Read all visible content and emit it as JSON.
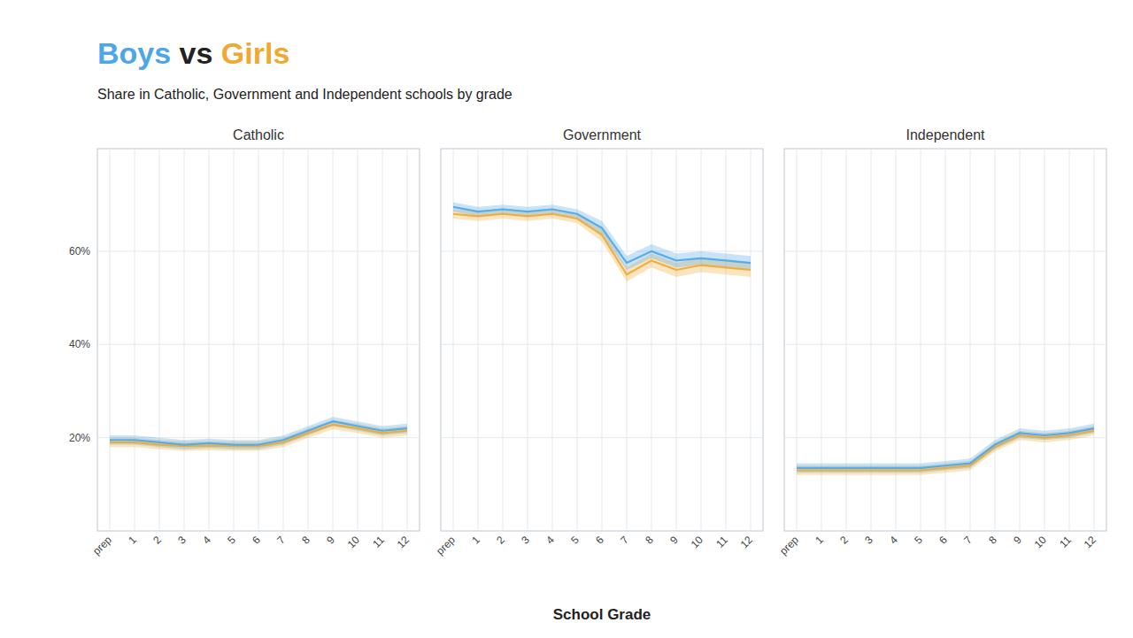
{
  "chart_data": [
    {
      "type": "line",
      "title": "Catholic",
      "subtitle": "Share in Catholic, Government and Independent schools by grade",
      "annotations": [
        {
          "text": "Boys",
          "color": "#4da6e8"
        },
        {
          "text": " vs ",
          "color": "#222222"
        },
        {
          "text": "Girls",
          "color": "#f0a830"
        }
      ],
      "categories": [
        "prep",
        "1",
        "2",
        "3",
        "4",
        "5",
        "6",
        "7",
        "8",
        "9",
        "10",
        "11",
        "12"
      ],
      "series": [
        {
          "color": "#f0a830",
          "values": [
            19.0,
            19.0,
            18.5,
            18.2,
            18.3,
            18.2,
            18.2,
            19.0,
            21.0,
            22.8,
            22.0,
            21.0,
            21.5
          ],
          "lower": [
            18.0,
            18.0,
            17.5,
            17.2,
            17.3,
            17.2,
            17.2,
            18.0,
            20.0,
            21.8,
            21.0,
            20.0,
            20.5
          ],
          "upper": [
            20.0,
            20.0,
            19.5,
            19.2,
            19.3,
            19.2,
            19.2,
            20.0,
            22.0,
            23.8,
            23.0,
            22.0,
            22.5
          ]
        },
        {
          "color": "#4da6e8",
          "values": [
            19.5,
            19.5,
            19.0,
            18.5,
            18.8,
            18.5,
            18.5,
            19.5,
            21.5,
            23.5,
            22.5,
            21.5,
            22.0
          ],
          "lower": [
            18.5,
            18.5,
            18.0,
            17.5,
            17.8,
            17.5,
            17.5,
            18.5,
            20.5,
            22.5,
            21.5,
            20.5,
            21.0
          ],
          "upper": [
            20.5,
            20.5,
            20.0,
            19.5,
            19.8,
            19.5,
            19.5,
            20.5,
            22.5,
            24.5,
            23.5,
            22.5,
            23.0
          ]
        }
      ],
      "ylim": [
        0,
        82
      ],
      "yticks": [
        {
          "value": 20,
          "label": "20%"
        },
        {
          "value": 40,
          "label": "40%"
        },
        {
          "value": 60,
          "label": "60%"
        }
      ],
      "grid": true
    },
    {
      "type": "line",
      "title": "Government",
      "xlabel": "School Grade",
      "categories": [
        "prep",
        "1",
        "2",
        "3",
        "4",
        "5",
        "6",
        "7",
        "8",
        "9",
        "10",
        "11",
        "12"
      ],
      "series": [
        {
          "color": "#f0a830",
          "values": [
            68.0,
            67.5,
            68.0,
            67.5,
            68.0,
            67.0,
            63.5,
            55.0,
            58.0,
            56.0,
            57.0,
            56.5,
            56.0
          ],
          "lower": [
            67.0,
            66.5,
            67.0,
            66.5,
            67.0,
            66.0,
            62.0,
            53.5,
            56.5,
            54.5,
            55.5,
            55.0,
            54.5
          ],
          "upper": [
            69.0,
            68.5,
            69.0,
            68.5,
            69.0,
            68.0,
            65.0,
            56.5,
            59.5,
            57.5,
            58.5,
            58.0,
            57.5
          ]
        },
        {
          "color": "#4da6e8",
          "values": [
            69.5,
            68.5,
            69.0,
            68.5,
            69.0,
            68.0,
            65.0,
            57.5,
            60.0,
            58.0,
            58.5,
            58.0,
            57.5
          ],
          "lower": [
            68.5,
            67.5,
            68.0,
            67.5,
            68.0,
            67.0,
            63.5,
            56.0,
            58.5,
            56.5,
            57.0,
            56.5,
            56.0
          ],
          "upper": [
            70.5,
            69.5,
            70.0,
            69.5,
            70.0,
            69.0,
            66.5,
            59.0,
            61.5,
            59.5,
            60.0,
            59.5,
            59.0
          ]
        }
      ],
      "ylim": [
        0,
        82
      ],
      "yticks": [
        20,
        40,
        60
      ],
      "tick_labels": "x",
      "grid": true
    },
    {
      "type": "line",
      "title": "Independent",
      "categories": [
        "prep",
        "1",
        "2",
        "3",
        "4",
        "5",
        "6",
        "7",
        "8",
        "9",
        "10",
        "11",
        "12"
      ],
      "series": [
        {
          "color": "#f0a830",
          "values": [
            13.0,
            13.0,
            13.0,
            13.0,
            13.0,
            13.0,
            13.5,
            14.0,
            18.0,
            20.5,
            20.0,
            20.5,
            21.5
          ],
          "lower": [
            12.0,
            12.0,
            12.0,
            12.0,
            12.0,
            12.0,
            12.5,
            13.0,
            17.0,
            19.5,
            19.0,
            19.5,
            20.5
          ],
          "upper": [
            14.0,
            14.0,
            14.0,
            14.0,
            14.0,
            14.0,
            14.5,
            15.0,
            19.0,
            21.5,
            21.0,
            21.5,
            22.5
          ]
        },
        {
          "color": "#4da6e8",
          "values": [
            13.5,
            13.5,
            13.5,
            13.5,
            13.5,
            13.5,
            14.0,
            14.5,
            18.5,
            21.0,
            20.5,
            21.0,
            22.0
          ],
          "lower": [
            12.5,
            12.5,
            12.5,
            12.5,
            12.5,
            12.5,
            13.0,
            13.5,
            17.5,
            20.0,
            19.5,
            20.0,
            21.0
          ],
          "upper": [
            14.5,
            14.5,
            14.5,
            14.5,
            14.5,
            14.5,
            15.0,
            15.5,
            19.5,
            22.0,
            21.5,
            22.0,
            23.0
          ]
        }
      ],
      "ylim": [
        0,
        82
      ],
      "yticks": [
        20,
        40,
        60
      ],
      "tick_labels": "x",
      "grid": true
    }
  ]
}
